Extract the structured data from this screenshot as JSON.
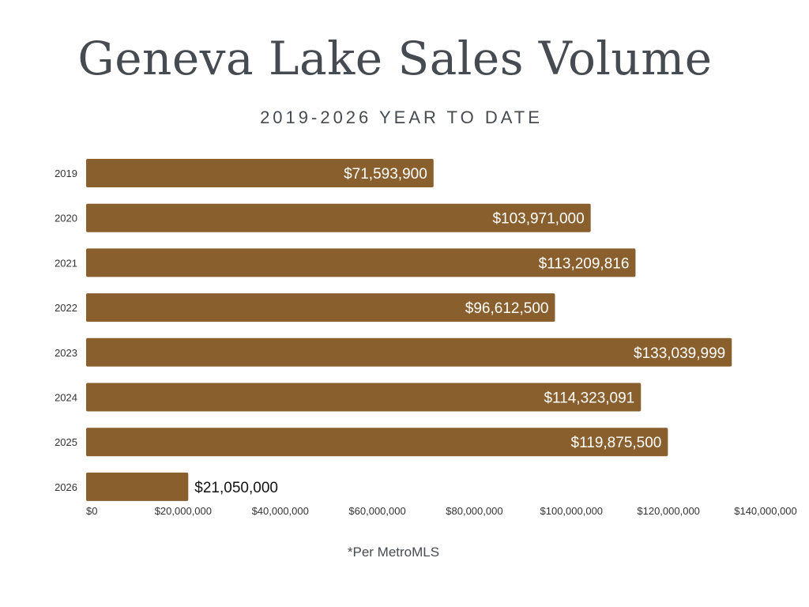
{
  "chart_data": {
    "type": "bar",
    "orientation": "horizontal",
    "title": "Geneva Lake Sales Volume",
    "subtitle": "2019-2026 YEAR TO DATE",
    "categories": [
      "2019",
      "2020",
      "2021",
      "2022",
      "2023",
      "2024",
      "2025",
      "2026"
    ],
    "values": [
      71593900,
      103971000,
      113209816,
      96612500,
      133039999,
      114323091,
      119875500,
      21050000
    ],
    "value_labels": [
      "$71,593,900",
      "$103,971,000",
      "$113,209,816",
      "$96,612,500",
      "$133,039,999",
      "$114,323,091",
      "$119,875,500",
      "$21,050,000"
    ],
    "xlim": [
      0,
      140000000
    ],
    "x_ticks": [
      0,
      20000000,
      40000000,
      60000000,
      80000000,
      100000000,
      120000000,
      140000000
    ],
    "x_tick_labels": [
      "$0",
      "$20,000,000",
      "$40,000,000",
      "$60,000,000",
      "$80,000,000",
      "$100,000,000",
      "$120,000,000",
      "$140,000,000"
    ],
    "bar_color": "#8a5f2e",
    "grid": false,
    "legend": "none"
  },
  "footnote": "*Per MetroMLS"
}
